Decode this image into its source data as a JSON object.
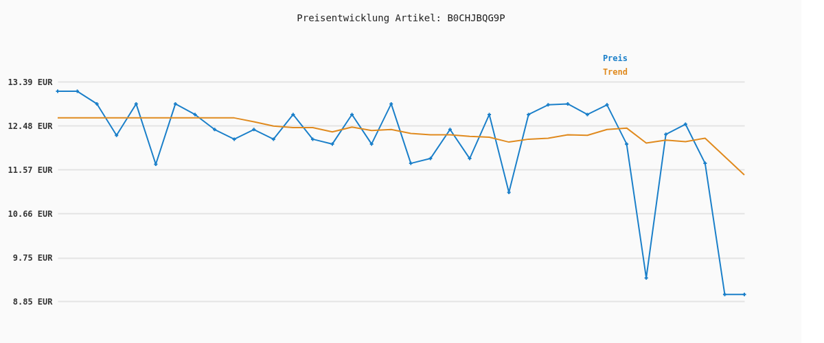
{
  "chart_data": {
    "type": "line",
    "title": "Preisentwicklung Artikel: B0CHJBQG9P",
    "categories": [
      null,
      null,
      null,
      null,
      null,
      null,
      null,
      null,
      null,
      null,
      null,
      null,
      null,
      null,
      null,
      null,
      null,
      null,
      null,
      null,
      null,
      null,
      null,
      null,
      null,
      null,
      null,
      null,
      null,
      null,
      null,
      null,
      null,
      null,
      null,
      null
    ],
    "series": [
      {
        "name": "Preis",
        "color": "#1a7fc9",
        "marker": "cross",
        "values": [
          13.19,
          13.19,
          12.93,
          12.28,
          12.93,
          11.68,
          12.93,
          12.71,
          12.4,
          12.2,
          12.4,
          12.2,
          12.71,
          12.2,
          12.1,
          12.71,
          12.1,
          12.93,
          11.7,
          11.8,
          12.4,
          11.8,
          12.71,
          11.1,
          12.71,
          12.91,
          12.93,
          12.71,
          12.91,
          12.1,
          9.33,
          12.3,
          12.51,
          11.7,
          8.99,
          8.99
        ]
      },
      {
        "name": "Trend",
        "color": "#e08a1e",
        "marker": "none",
        "values": [
          12.64,
          12.64,
          12.64,
          12.64,
          12.64,
          12.64,
          12.64,
          12.64,
          12.64,
          12.64,
          12.56,
          12.47,
          12.44,
          12.44,
          12.35,
          12.45,
          12.38,
          12.4,
          12.32,
          12.29,
          12.29,
          12.26,
          12.24,
          12.14,
          12.2,
          12.22,
          12.29,
          12.28,
          12.4,
          12.43,
          12.12,
          12.18,
          12.15,
          12.22,
          11.84,
          11.46
        ]
      }
    ],
    "ylim": [
      8.85,
      13.39
    ],
    "yticks": [
      {
        "value": 8.85,
        "label": "8.85 EUR"
      },
      {
        "value": 9.75,
        "label": "9.75 EUR"
      },
      {
        "value": 10.66,
        "label": "10.66 EUR"
      },
      {
        "value": 11.57,
        "label": "11.57 EUR"
      },
      {
        "value": 12.48,
        "label": "12.48 EUR"
      },
      {
        "value": 13.39,
        "label": "13.39 EUR"
      }
    ],
    "grid": "y",
    "legend": "top right",
    "tick_labels": "y",
    "line_style": "solid"
  }
}
